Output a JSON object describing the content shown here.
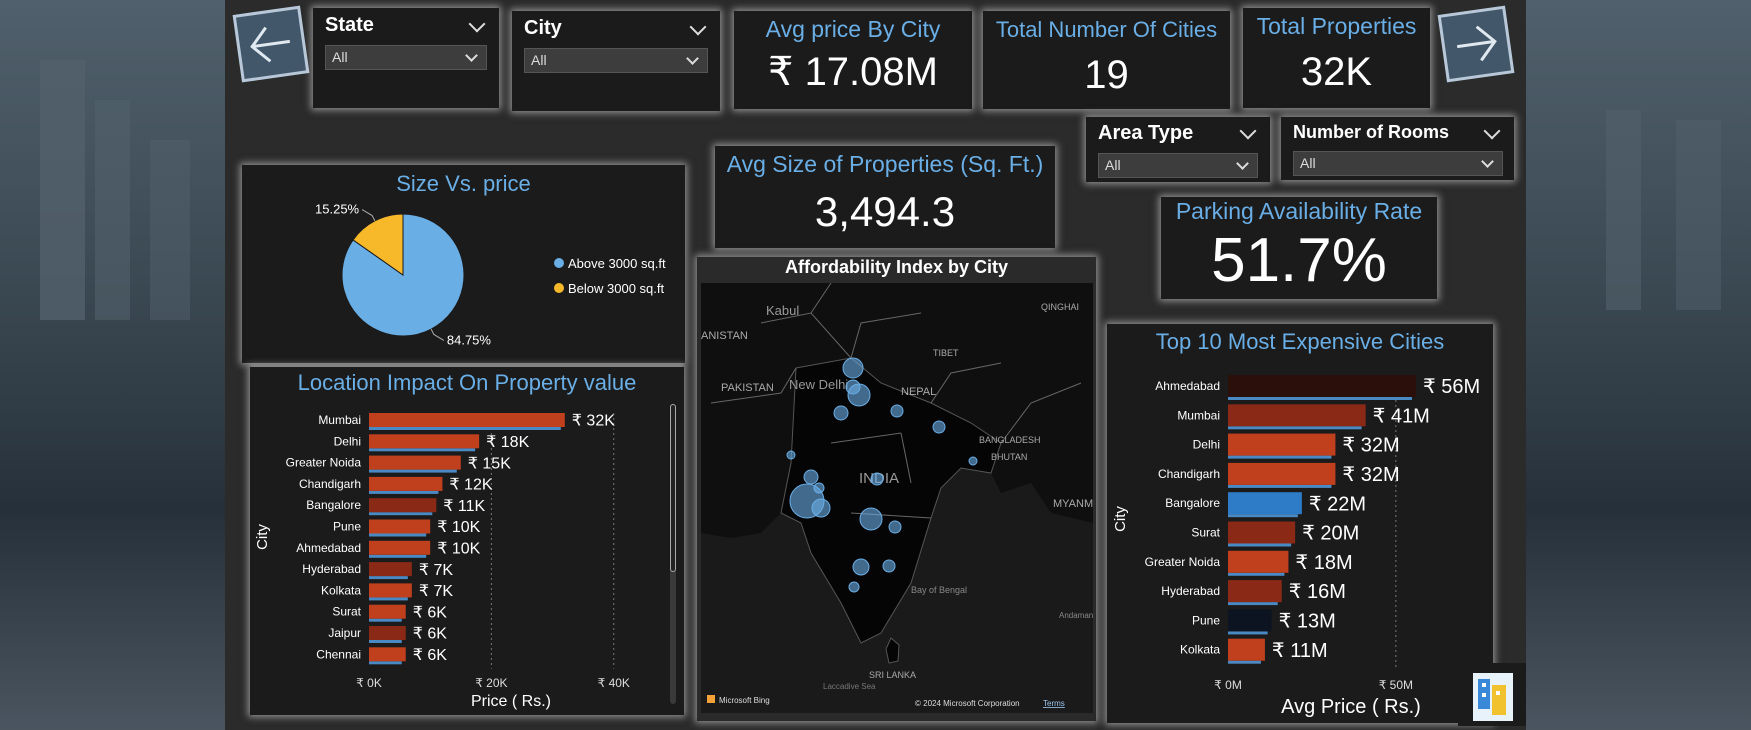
{
  "filters": {
    "state": {
      "label": "State",
      "value": "All"
    },
    "city": {
      "label": "City",
      "value": "All"
    },
    "area_type": {
      "label": "Area Type",
      "value": "All"
    },
    "rooms": {
      "label": "Number of Rooms",
      "value": "All"
    }
  },
  "kpis": {
    "avg_price": {
      "title": "Avg price By City",
      "value": "₹ 17.08M"
    },
    "total_cities": {
      "title": "Total Number Of Cities",
      "value": "19"
    },
    "total_properties": {
      "title": "Total Properties",
      "value": "32K"
    },
    "avg_size": {
      "title": "Avg Size of Properties (Sq. Ft.)",
      "value": "3,494.3"
    },
    "parking": {
      "title": "Parking Availability Rate",
      "value": "51.7%"
    }
  },
  "map": {
    "title": "Affordability Index by City",
    "labels": [
      "Kabul",
      "ANISTAN",
      "PAKISTAN",
      "New Delhi",
      "NEPAL",
      "TIBET",
      "QINGHAI",
      "INDIA",
      "BHUTAN",
      "BANGLADESH",
      "MYANM",
      "Bay of Bengal",
      "Andaman Sea",
      "SRI LANKA",
      "Laccadive Sea"
    ],
    "attribution_bing": "Microsoft Bing",
    "attribution_copy": "© 2024 Microsoft Corporation",
    "attribution_terms": "Terms"
  },
  "colors": {
    "accent_blue": "#6aaee6",
    "pie_above": "#6aaee6",
    "pie_below": "#f7b92a",
    "bar_orange": "#c0401e",
    "bar_dark": "#8a2a16"
  },
  "chart_data": [
    {
      "type": "pie",
      "title": "Size Vs. price",
      "slices": [
        {
          "label": "Above 3000 sq.ft",
          "value": 84.75,
          "display": "84.75%"
        },
        {
          "label": "Below 3000 sq.ft",
          "value": 15.25,
          "display": "15.25%"
        }
      ],
      "legend": "right"
    },
    {
      "type": "bar",
      "orientation": "horizontal",
      "title": "Location Impact On Property value",
      "xlabel": "Price ( Rs.)",
      "ylabel": "City",
      "categories": [
        "Mumbai",
        "Delhi",
        "Greater Noida",
        "Chandigarh",
        "Bangalore",
        "Pune",
        "Ahmedabad",
        "Hyderabad",
        "Kolkata",
        "Surat",
        "Jaipur",
        "Chennai"
      ],
      "values": [
        32000,
        18000,
        15000,
        12000,
        11000,
        10000,
        10000,
        7000,
        7000,
        6000,
        6000,
        6000
      ],
      "labels": [
        "₹ 32K",
        "₹ 18K",
        "₹ 15K",
        "₹ 12K",
        "₹ 11K",
        "₹ 10K",
        "₹ 10K",
        "₹ 7K",
        "₹ 7K",
        "₹ 6K",
        "₹ 6K",
        "₹ 6K"
      ],
      "ticks": [
        {
          "value": 0,
          "label": "₹ 0K"
        },
        {
          "value": 20000,
          "label": "₹ 20K"
        },
        {
          "value": 40000,
          "label": "₹ 40K"
        }
      ],
      "xlim": [
        0,
        42000
      ],
      "grid": true
    },
    {
      "type": "bar",
      "orientation": "horizontal",
      "title": "Top 10 Most Expensive Cities",
      "xlabel": "Avg Price ( Rs.)",
      "ylabel": "City",
      "categories": [
        "Ahmedabad",
        "Mumbai",
        "Delhi",
        "Chandigarh",
        "Bangalore",
        "Surat",
        "Greater Noida",
        "Hyderabad",
        "Pune",
        "Kolkata"
      ],
      "values": [
        56,
        41,
        32,
        32,
        22,
        20,
        18,
        16,
        13,
        11
      ],
      "labels": [
        "₹ 56M",
        "₹ 41M",
        "₹ 32M",
        "₹ 32M",
        "₹ 22M",
        "₹ 20M",
        "₹ 18M",
        "₹ 16M",
        "₹ 13M",
        "₹ 11M"
      ],
      "ticks": [
        {
          "value": 0,
          "label": "₹ 0M"
        },
        {
          "value": 50,
          "label": "₹ 50M"
        }
      ],
      "xlim": [
        0,
        70
      ],
      "grid": true
    }
  ]
}
